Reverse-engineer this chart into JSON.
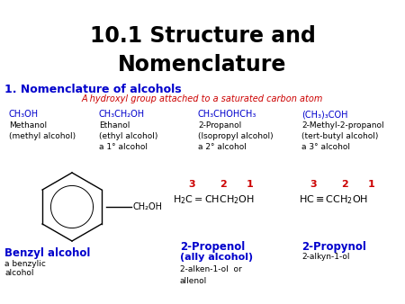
{
  "title_line1": "10.1 Structure and",
  "title_line2": "Nomenclature",
  "title_fontsize": 17,
  "title_color": "#000000",
  "section_title": "1. Nomenclature of alcohols",
  "section_color": "#0000CC",
  "section_fontsize": 9,
  "subtitle": "A hydroxyl group attached to a saturated carbon atom",
  "subtitle_color": "#CC0000",
  "subtitle_fontsize": 7,
  "formula_color": "#0000CC",
  "formula_fontsize": 7,
  "names_color": "#000000",
  "names_fontsize": 6.5,
  "benzyl_name_color": "#0000CC",
  "propenol_name_color": "#0000CC",
  "propynol_name_color": "#0000CC",
  "red_num_color": "#CC0000",
  "background_color": "#FFFFFF"
}
